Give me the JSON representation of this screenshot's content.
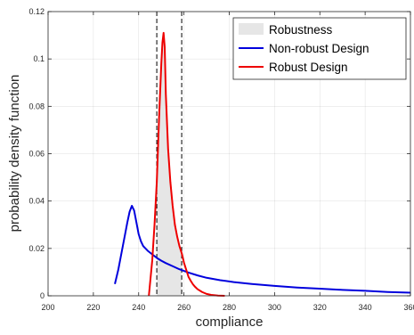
{
  "chart_data": {
    "type": "line",
    "xlabel": "compliance",
    "ylabel": "probability density function",
    "xlim": [
      200,
      360
    ],
    "ylim": [
      0,
      0.12
    ],
    "x_ticks": [
      200,
      220,
      240,
      260,
      280,
      300,
      320,
      340,
      360
    ],
    "x_tick_labels": [
      "200",
      "220",
      "240",
      "260",
      "280",
      "300",
      "320",
      "340",
      "360"
    ],
    "y_ticks": [
      0,
      0.02,
      0.04,
      0.06,
      0.08,
      0.1,
      0.12
    ],
    "y_tick_labels": [
      "0",
      "0.02",
      "0.04",
      "0.06",
      "0.08",
      "0.1",
      "0.12"
    ],
    "grid": true,
    "legend_position": "top-right",
    "legend": [
      "Robustness",
      "Non-robust Design",
      "Robust Design"
    ],
    "robustness_interval": [
      248,
      259
    ],
    "series": [
      {
        "name": "Robustness",
        "kind": "area",
        "color": "#e6e6e6",
        "x": [
          248,
          249,
          250,
          250.5,
          251,
          251.5,
          252,
          253,
          254,
          255,
          256,
          257,
          258,
          259
        ],
        "y": [
          0.048,
          0.075,
          0.098,
          0.107,
          0.111,
          0.105,
          0.085,
          0.062,
          0.048,
          0.038,
          0.03,
          0.025,
          0.021,
          0.018
        ]
      },
      {
        "name": "Non-robust Design",
        "kind": "line",
        "color": "#0000dd",
        "x": [
          229.5,
          231,
          232,
          233,
          234,
          235,
          236,
          237,
          238,
          239,
          240,
          241,
          242,
          244,
          246,
          248,
          250,
          252,
          255,
          258,
          262,
          266,
          270,
          276,
          282,
          290,
          300,
          310,
          320,
          330,
          340,
          350,
          360
        ],
        "y": [
          0.005,
          0.011,
          0.016,
          0.021,
          0.026,
          0.031,
          0.0355,
          0.038,
          0.036,
          0.031,
          0.026,
          0.023,
          0.021,
          0.019,
          0.0175,
          0.016,
          0.0148,
          0.0138,
          0.0125,
          0.0112,
          0.0098,
          0.0086,
          0.0076,
          0.0066,
          0.0058,
          0.005,
          0.0042,
          0.0035,
          0.003,
          0.0025,
          0.0021,
          0.0016,
          0.0013
        ]
      },
      {
        "name": "Robust Design",
        "kind": "line",
        "color": "#ee0000",
        "x": [
          244.5,
          245,
          246,
          247,
          248,
          249,
          250,
          250.5,
          251,
          251.5,
          252,
          253,
          254,
          255,
          256,
          257,
          258,
          259,
          260,
          261,
          262,
          263,
          264,
          265,
          266,
          268,
          270,
          272,
          275,
          278
        ],
        "y": [
          0,
          0.005,
          0.015,
          0.03,
          0.048,
          0.075,
          0.098,
          0.107,
          0.111,
          0.105,
          0.085,
          0.062,
          0.048,
          0.038,
          0.03,
          0.025,
          0.021,
          0.018,
          0.014,
          0.011,
          0.008,
          0.0063,
          0.0048,
          0.0037,
          0.0028,
          0.0016,
          0.0008,
          0.0004,
          0.0001,
          0
        ]
      }
    ]
  }
}
